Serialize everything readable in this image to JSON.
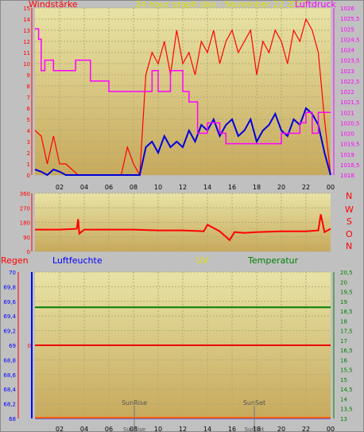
{
  "header": {
    "left_label": "Windstärke",
    "title": "24 hour graph day : November 22 2017",
    "right_label": "Luftdruck"
  },
  "panel2": {
    "direction_labels": [
      "N",
      "W",
      "S",
      "O",
      "N"
    ]
  },
  "panel3": {
    "labels": {
      "regen": "Regen",
      "luftfeuchte": "Luftfeuchte",
      "uv": "UV",
      "temperatur": "Temperatur"
    },
    "uv_zero_label": "0",
    "sunrise_label": "SunRise",
    "sunset_label": "SunSet",
    "sunrise_bottom_label": "SunRise",
    "sunset_bottom_label": "SunSet"
  },
  "colors": {
    "wind": "#ff0000",
    "wind_avg": "#0000dd",
    "pressure": "#ff00ff",
    "title": "#e0e000",
    "humidity": "#0000ff",
    "temperature": "#008000",
    "uv": "#e0e000",
    "rain": "#ff0000"
  },
  "chart_data": [
    {
      "type": "line",
      "x_tick_labels": [
        "02",
        "04",
        "06",
        "08",
        "10",
        "12",
        "14",
        "16",
        "18",
        "20",
        "22",
        "00"
      ],
      "left_axis": {
        "ylim": [
          0,
          15
        ],
        "ticks": [
          "0",
          "1",
          "2",
          "3",
          "4",
          "5",
          "6",
          "7",
          "8",
          "9",
          "10",
          "11",
          "12",
          "13",
          "14",
          "15"
        ]
      },
      "right_axis": {
        "ylim": [
          1018,
          1026
        ],
        "ticks": [
          "1018",
          "1018,5",
          "1019",
          "1019,5",
          "1020",
          "1020,5",
          "1021",
          "1021,5",
          "1022",
          "1022,5",
          "1023",
          "1023,5",
          "1024",
          "1024,5",
          "1025",
          "1025,5",
          "1026"
        ]
      },
      "series": [
        {
          "role": "gust",
          "x": [
            0,
            0.5,
            1,
            1.5,
            2,
            2.5,
            3,
            3.5,
            4,
            4.5,
            5,
            5.5,
            6,
            6.5,
            7,
            7.5,
            8,
            8.5,
            9,
            9.5,
            10,
            10.5,
            11,
            11.5,
            12,
            12.5,
            13,
            13.5,
            14,
            14.5,
            15,
            15.5,
            16,
            16.5,
            17,
            17.5,
            18,
            18.5,
            19,
            19.5,
            20,
            20.5,
            21,
            21.5,
            22,
            22.5,
            23,
            23.5,
            24
          ],
          "y": [
            4,
            3.5,
            1,
            3.5,
            1,
            1,
            0.5,
            0,
            0,
            0,
            0,
            0,
            0,
            0,
            0,
            2.5,
            1,
            0,
            9,
            11,
            10,
            12,
            9,
            13,
            10,
            11,
            9,
            12,
            11,
            13,
            10,
            12,
            13,
            11,
            12,
            13,
            9,
            12,
            11,
            13,
            12,
            10,
            13,
            12,
            14,
            13,
            11,
            5,
            0
          ]
        },
        {
          "role": "average",
          "x": [
            0,
            0.5,
            1,
            1.5,
            2,
            2.5,
            3,
            3.5,
            4,
            4.5,
            5,
            5.5,
            6,
            6.5,
            7,
            7.5,
            8,
            8.5,
            9,
            9.5,
            10,
            10.5,
            11,
            11.5,
            12,
            12.5,
            13,
            13.5,
            14,
            14.5,
            15,
            15.5,
            16,
            16.5,
            17,
            17.5,
            18,
            18.5,
            19,
            19.5,
            20,
            20.5,
            21,
            21.5,
            22,
            22.5,
            23,
            23.5,
            24
          ],
          "y": [
            0.5,
            0.3,
            0,
            0.5,
            0.3,
            0,
            0,
            0,
            0,
            0,
            0,
            0,
            0,
            0,
            0,
            0,
            0,
            0,
            2.5,
            3,
            2,
            3.5,
            2.5,
            3,
            2.5,
            4,
            3,
            4.5,
            4,
            5,
            3.5,
            4.5,
            5,
            3.5,
            4,
            5,
            3,
            4,
            4.5,
            5.5,
            4,
            3.5,
            5,
            4.5,
            6,
            5.5,
            4.5,
            2,
            0
          ]
        },
        {
          "role": "pressure",
          "axis": "right",
          "x": [
            0,
            0.3,
            0.5,
            0.8,
            1.5,
            2.5,
            3.3,
            4.5,
            6,
            8,
            9,
            9.5,
            10,
            11,
            12,
            12.5,
            13.2,
            14,
            15,
            15.5,
            16.5,
            17.5,
            18.5,
            19.5,
            20,
            20.5,
            21.5,
            22,
            22.5,
            23,
            24
          ],
          "y": [
            1025,
            1024.5,
            1023,
            1023.5,
            1023,
            1023,
            1023.5,
            1022.5,
            1022,
            1022,
            1022,
            1023,
            1022,
            1023,
            1022,
            1021.5,
            1020,
            1020.5,
            1020,
            1019.5,
            1019.5,
            1019.5,
            1019.5,
            1019.5,
            1020,
            1020,
            1020.5,
            1021,
            1020,
            1021,
            1021
          ]
        }
      ]
    },
    {
      "type": "line",
      "y_ticks": [
        "0",
        "90",
        "180",
        "270",
        "360"
      ],
      "ylim": [
        0,
        360
      ],
      "series": [
        {
          "role": "wind_direction",
          "x": [
            0,
            2,
            3.4,
            3.5,
            3.6,
            4,
            6,
            8,
            10,
            12,
            13.7,
            14,
            15,
            15.8,
            16.2,
            17,
            18,
            20,
            22,
            23,
            23.2,
            23.5,
            24
          ],
          "y": [
            135,
            135,
            140,
            200,
            110,
            135,
            135,
            135,
            130,
            130,
            125,
            165,
            125,
            70,
            120,
            115,
            120,
            125,
            125,
            130,
            230,
            120,
            140
          ]
        }
      ]
    },
    {
      "type": "line",
      "rain_axis": {
        "ticks": []
      },
      "humidity_axis": {
        "ylim": [
          68,
          70
        ],
        "ticks": [
          "68",
          "68,2",
          "68,4",
          "68,6",
          "68,8",
          "69",
          "69,2",
          "69,4",
          "69,6",
          "69,8",
          "70"
        ]
      },
      "temperature_axis": {
        "ylim": [
          13,
          20.5
        ],
        "ticks": [
          "13",
          "13,5",
          "14",
          "14,5",
          "15",
          "15,5",
          "16",
          "16,5",
          "17",
          "17,5",
          "18",
          "18,5",
          "19",
          "19,5",
          "20",
          "20,5"
        ]
      },
      "x_tick_labels": [
        "02",
        "04",
        "06",
        "08",
        "10",
        "12",
        "14",
        "16",
        "18",
        "20",
        "22",
        "00"
      ],
      "series": [
        {
          "role": "temperature",
          "x": [
            0,
            24
          ],
          "y": [
            18.7,
            18.7
          ]
        },
        {
          "role": "uv",
          "x": [
            0,
            24
          ],
          "y": [
            0,
            0
          ]
        },
        {
          "role": "humidity",
          "x": [
            0,
            24
          ],
          "y": [
            68,
            68
          ]
        }
      ]
    }
  ]
}
